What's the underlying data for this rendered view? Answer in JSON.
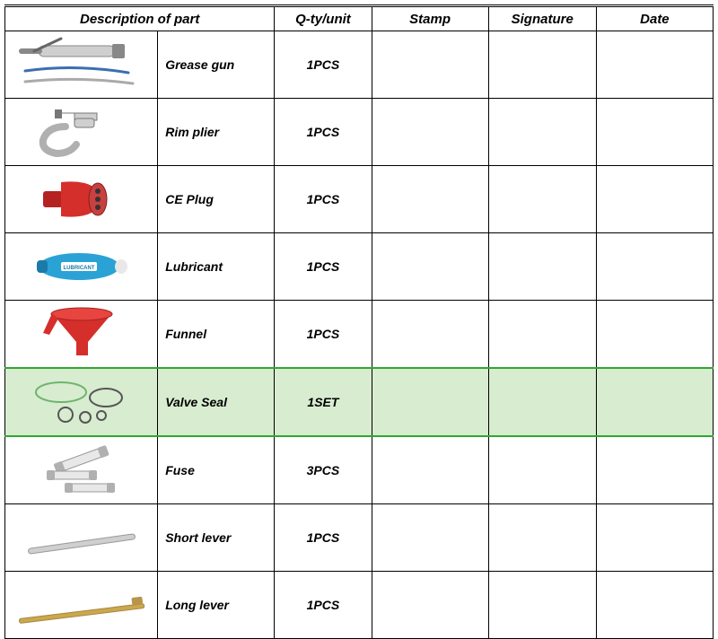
{
  "headers": {
    "description": "Description of part",
    "qty": "Q-ty/unit",
    "stamp": "Stamp",
    "signature": "Signature",
    "date": "Date"
  },
  "rows": [
    {
      "name": "Grease gun",
      "qty": "1PCS",
      "highlighted": false,
      "icon": "grease-gun"
    },
    {
      "name": "Rim plier",
      "qty": "1PCS",
      "highlighted": false,
      "icon": "rim-plier"
    },
    {
      "name": "CE Plug",
      "qty": "1PCS",
      "highlighted": false,
      "icon": "ce-plug"
    },
    {
      "name": "Lubricant",
      "qty": "1PCS",
      "highlighted": false,
      "icon": "lubricant"
    },
    {
      "name": "Funnel",
      "qty": "1PCS",
      "highlighted": false,
      "icon": "funnel"
    },
    {
      "name": "Valve Seal",
      "qty": "1SET",
      "highlighted": true,
      "icon": "valve-seal"
    },
    {
      "name": "Fuse",
      "qty": "3PCS",
      "highlighted": false,
      "icon": "fuse"
    },
    {
      "name": "Short lever",
      "qty": "1PCS",
      "highlighted": false,
      "icon": "short-lever"
    },
    {
      "name": "Long lever",
      "qty": "1PCS",
      "highlighted": false,
      "icon": "long-lever"
    }
  ],
  "colors": {
    "highlight_bg": "#d8ecd0",
    "highlight_border": "#2fa82f",
    "red": "#d52f2b",
    "blue": "#2aa2d6",
    "gray": "#b0b0b0",
    "silver": "#cfcfcf",
    "gold": "#c9a84e",
    "green_ring": "#6fb36f",
    "orange": "#f15a24"
  }
}
